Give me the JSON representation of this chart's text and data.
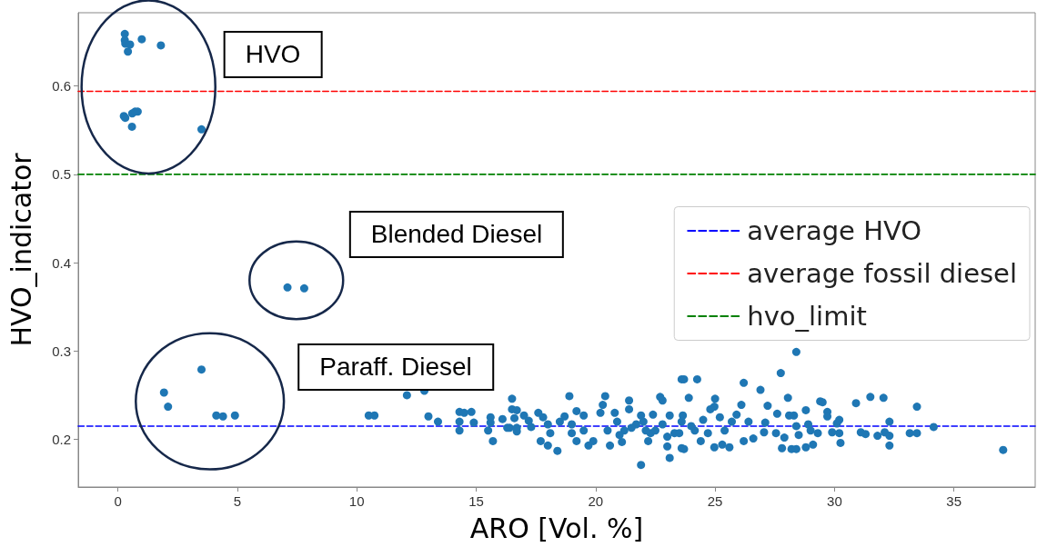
{
  "chart_data": {
    "type": "scatter",
    "xlabel": "ARO [Vol. %]",
    "ylabel": "HVO_indicator",
    "xlim": [
      -1.66,
      38.4
    ],
    "ylim": [
      0.146,
      0.683
    ],
    "xticks": [
      0,
      5,
      10,
      15,
      20,
      25,
      30,
      35
    ],
    "yticks": [
      0.2,
      0.3,
      0.4,
      0.5,
      0.6
    ],
    "grid": false,
    "legend": "right",
    "marker": "circle",
    "ref_lines": [
      {
        "axis": "y",
        "value": 0.215,
        "label": "average HVO",
        "color": "#0000ff",
        "line_style": "dashed"
      },
      {
        "axis": "y",
        "value": 0.594,
        "label": "average fossil diesel",
        "color": "#ff0000",
        "line_style": "dashed"
      },
      {
        "axis": "y",
        "value": 0.5,
        "label": "hvo_limit",
        "color": "#008000",
        "line_style": "dashed"
      }
    ],
    "annotations": [
      "HVO",
      "Blended Diesel",
      "Paraff. Diesel"
    ],
    "series": [
      {
        "color": "#1f77b4",
        "x": [
          0.29,
          0.29,
          0.31,
          0.51,
          0.42,
          1.0,
          1.8,
          0.25,
          0.31,
          0.6,
          0.72,
          0.83,
          0.59,
          3.5,
          7.1,
          7.8,
          3.5,
          1.93,
          2.1,
          4.12,
          4.4,
          4.9,
          10.5,
          10.74,
          12.1,
          12.83,
          13.0,
          13.4,
          14.3,
          14.5,
          14.8,
          14.3,
          14.9,
          14.3,
          15.5,
          15.7,
          15.6,
          15.6,
          16.1,
          16.4,
          16.5,
          16.5,
          16.7,
          16.6,
          17.0,
          17.2,
          16.7,
          16.7,
          16.3,
          17.3,
          17.6,
          17.7,
          18.0,
          18.4,
          18.0,
          18.1,
          18.9,
          18.7,
          19.2,
          19.2,
          19.7,
          19.9,
          19.5,
          19.0,
          19.5,
          20.4,
          20.3,
          20.2,
          20.6,
          21.1,
          21.9,
          21.4,
          21.4,
          20.8,
          20.9,
          21.2,
          21.7,
          21.9,
          22.4,
          22.7,
          22.8,
          23.1,
          23.0,
          23.6,
          23.7,
          23.9,
          23.6,
          23.3,
          22.8,
          22.3,
          23.1,
          22.1,
          23.6,
          24.25,
          25.0,
          24.97,
          24.8,
          26.2,
          26.1,
          26.9,
          27.75,
          28.4,
          28.05,
          27.2,
          27.6,
          28.1,
          28.3,
          28.8,
          29.4,
          29.5,
          29.7,
          29.7,
          30.2,
          30.1,
          30.2,
          30.25,
          30.9,
          31.5,
          32.05,
          32.3,
          31.1,
          31.3,
          31.8,
          32.1,
          32.3,
          32.3,
          33.15,
          33.45,
          33.45,
          34.15,
          37.06,
          27.8,
          28.2,
          28.4,
          28.8,
          29.1,
          25.6,
          25.3,
          24.97,
          24.4,
          23.7,
          26.6,
          26.2,
          25.9,
          26.4,
          27.05,
          27.55,
          27.9,
          28.5,
          29.0,
          29.3,
          29.9,
          25.4,
          24.7,
          24.15,
          25.2,
          25.7,
          27.1,
          28.4,
          28.9,
          23.65,
          23.5,
          21.0,
          21.5,
          22.0,
          22.5,
          23.0,
          24.0,
          20.5,
          22.2,
          24.5,
          19.0,
          18.5,
          17.8
        ],
        "values": [
          0.659,
          0.652,
          0.648,
          0.647,
          0.639,
          0.653,
          0.646,
          0.566,
          0.564,
          0.569,
          0.571,
          0.571,
          0.554,
          0.551,
          0.372,
          0.371,
          0.279,
          0.253,
          0.237,
          0.227,
          0.226,
          0.227,
          0.227,
          0.227,
          0.25,
          0.255,
          0.226,
          0.22,
          0.231,
          0.23,
          0.231,
          0.22,
          0.219,
          0.21,
          0.21,
          0.198,
          0.225,
          0.219,
          0.223,
          0.213,
          0.246,
          0.234,
          0.233,
          0.224,
          0.227,
          0.221,
          0.213,
          0.209,
          0.213,
          0.214,
          0.23,
          0.198,
          0.193,
          0.187,
          0.217,
          0.207,
          0.249,
          0.226,
          0.232,
          0.198,
          0.193,
          0.198,
          0.227,
          0.217,
          0.21,
          0.249,
          0.239,
          0.23,
          0.193,
          0.197,
          0.171,
          0.244,
          0.234,
          0.23,
          0.22,
          0.21,
          0.217,
          0.227,
          0.228,
          0.248,
          0.244,
          0.179,
          0.192,
          0.268,
          0.268,
          0.247,
          0.19,
          0.207,
          0.217,
          0.207,
          0.227,
          0.21,
          0.22,
          0.268,
          0.246,
          0.237,
          0.234,
          0.264,
          0.239,
          0.256,
          0.275,
          0.299,
          0.247,
          0.238,
          0.229,
          0.227,
          0.227,
          0.233,
          0.243,
          0.242,
          0.231,
          0.226,
          0.222,
          0.218,
          0.207,
          0.196,
          0.241,
          0.248,
          0.247,
          0.22,
          0.208,
          0.206,
          0.204,
          0.208,
          0.204,
          0.193,
          0.207,
          0.207,
          0.237,
          0.214,
          0.188,
          0.19,
          0.189,
          0.189,
          0.191,
          0.194,
          0.191,
          0.194,
          0.191,
          0.198,
          0.189,
          0.201,
          0.198,
          0.228,
          0.22,
          0.208,
          0.207,
          0.202,
          0.205,
          0.21,
          0.207,
          0.208,
          0.21,
          0.207,
          0.21,
          0.225,
          0.22,
          0.219,
          0.215,
          0.217,
          0.227,
          0.207,
          0.205,
          0.213,
          0.22,
          0.21,
          0.203,
          0.215,
          0.21,
          0.198,
          0.222,
          0.207,
          0.22,
          0.225
        ]
      }
    ]
  }
}
